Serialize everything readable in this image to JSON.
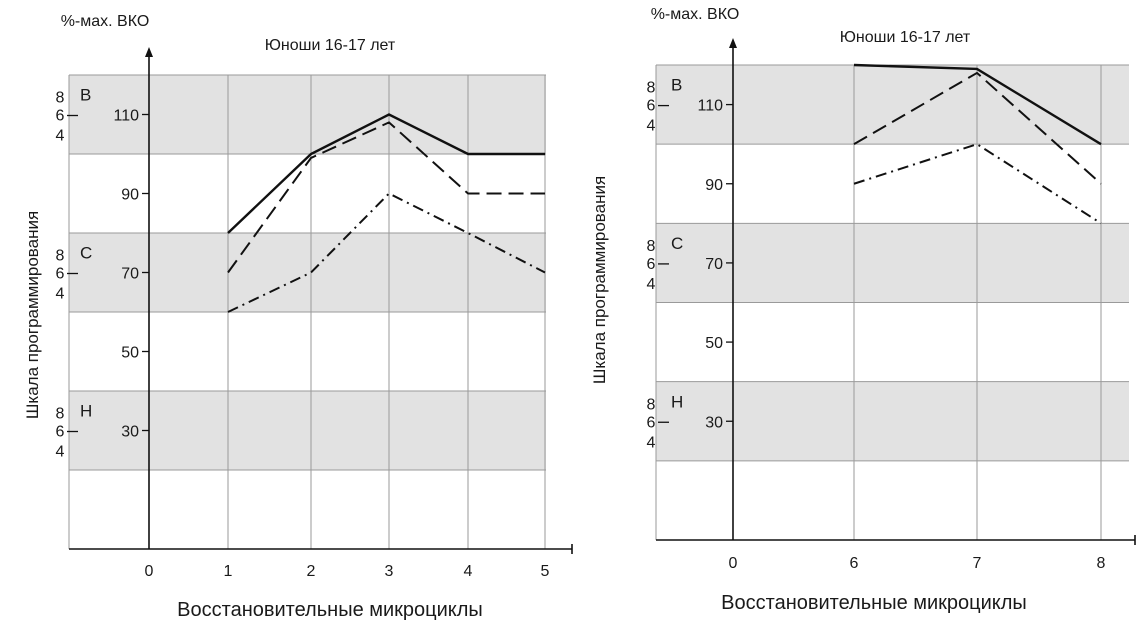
{
  "panels": [
    {
      "y_axis_title": "%-мах. ВКО",
      "title": "Юноши 16-17 лет",
      "side_label": "Шкала программирования",
      "x_label": "Восстановительные микроциклы",
      "origin_label": "0",
      "zones": [
        {
          "letter": "В",
          "digits": [
            "8",
            "6",
            "4"
          ]
        },
        {
          "letter": "С",
          "digits": [
            "8",
            "6",
            "4"
          ]
        },
        {
          "letter": "Н",
          "digits": [
            "8",
            "6",
            "4"
          ]
        }
      ]
    },
    {
      "y_axis_title": "%-мах. ВКО",
      "title": "Юноши 16-17 лет",
      "side_label": "Шкала программирования",
      "x_label": "Восстановительные микроциклы",
      "origin_label": "0",
      "zones": [
        {
          "letter": "В",
          "digits": [
            "8",
            "6",
            "4"
          ]
        },
        {
          "letter": "С",
          "digits": [
            "8",
            "6",
            "4"
          ]
        },
        {
          "letter": "Н",
          "digits": [
            "8",
            "6",
            "4"
          ]
        }
      ]
    }
  ],
  "chart_data": [
    {
      "type": "line",
      "title": "Юноши 16-17 лет",
      "xlabel": "Восстановительные микроциклы",
      "ylabel": "%-мах. ВКО",
      "y_ticks": [
        30,
        50,
        70,
        90,
        110
      ],
      "categories": [
        "1",
        "2",
        "3",
        "4",
        "5"
      ],
      "shaded_bands": [
        [
          20,
          40
        ],
        [
          60,
          80
        ],
        [
          100,
          120
        ]
      ],
      "grid": true,
      "series": [
        {
          "style": "solid",
          "color": "#111111",
          "values": [
            80,
            100,
            110,
            100,
            100
          ]
        },
        {
          "style": "dashed",
          "color": "#111111",
          "values": [
            70,
            99,
            108,
            90,
            90
          ]
        },
        {
          "style": "dash-dot",
          "color": "#111111",
          "values": [
            60,
            70,
            90,
            80,
            70
          ]
        }
      ]
    },
    {
      "type": "line",
      "title": "Юноши 16-17 лет",
      "xlabel": "Восстановительные микроциклы",
      "ylabel": "%-мах. ВКО",
      "y_ticks": [
        30,
        50,
        70,
        90,
        110
      ],
      "categories": [
        "6",
        "7",
        "8"
      ],
      "shaded_bands": [
        [
          20,
          40
        ],
        [
          60,
          80
        ],
        [
          100,
          120
        ]
      ],
      "grid": true,
      "series": [
        {
          "style": "solid",
          "color": "#111111",
          "values": [
            120,
            119,
            100
          ]
        },
        {
          "style": "dashed",
          "color": "#111111",
          "values": [
            100,
            118,
            90
          ]
        },
        {
          "style": "dash-dot",
          "color": "#111111",
          "values": [
            90,
            100,
            80
          ]
        }
      ]
    }
  ]
}
